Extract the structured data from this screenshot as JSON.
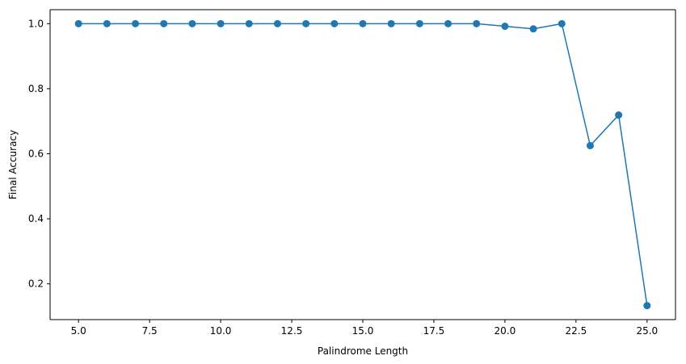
{
  "chart_data": {
    "type": "line",
    "title": "",
    "xlabel": "Palindrome Length",
    "ylabel": "Final Accuracy",
    "xlim": [
      4.0,
      26.0
    ],
    "ylim": [
      0.09,
      1.043
    ],
    "grid": false,
    "legend": "none",
    "xticks": [
      5.0,
      7.5,
      10.0,
      12.5,
      15.0,
      17.5,
      20.0,
      22.5,
      25.0
    ],
    "xtick_labels": [
      "5.0",
      "7.5",
      "10.0",
      "12.5",
      "15.0",
      "17.5",
      "20.0",
      "22.5",
      "25.0"
    ],
    "yticks": [
      0.2,
      0.4,
      0.6,
      0.8,
      1.0
    ],
    "ytick_labels": [
      "0.2",
      "0.4",
      "0.6",
      "0.8",
      "1.0"
    ],
    "color": "#1f77b4",
    "series": [
      {
        "x": [
          5,
          6,
          7,
          8,
          9,
          10,
          11,
          12,
          13,
          14,
          15,
          16,
          17,
          18,
          19,
          20,
          21,
          22,
          23,
          24,
          25
        ],
        "values": [
          1.0,
          1.0,
          1.0,
          1.0,
          1.0,
          1.0,
          1.0,
          1.0,
          1.0,
          1.0,
          1.0,
          1.0,
          1.0,
          1.0,
          1.0,
          0.992,
          0.984,
          1.0,
          0.625,
          0.719,
          0.133
        ]
      }
    ]
  }
}
